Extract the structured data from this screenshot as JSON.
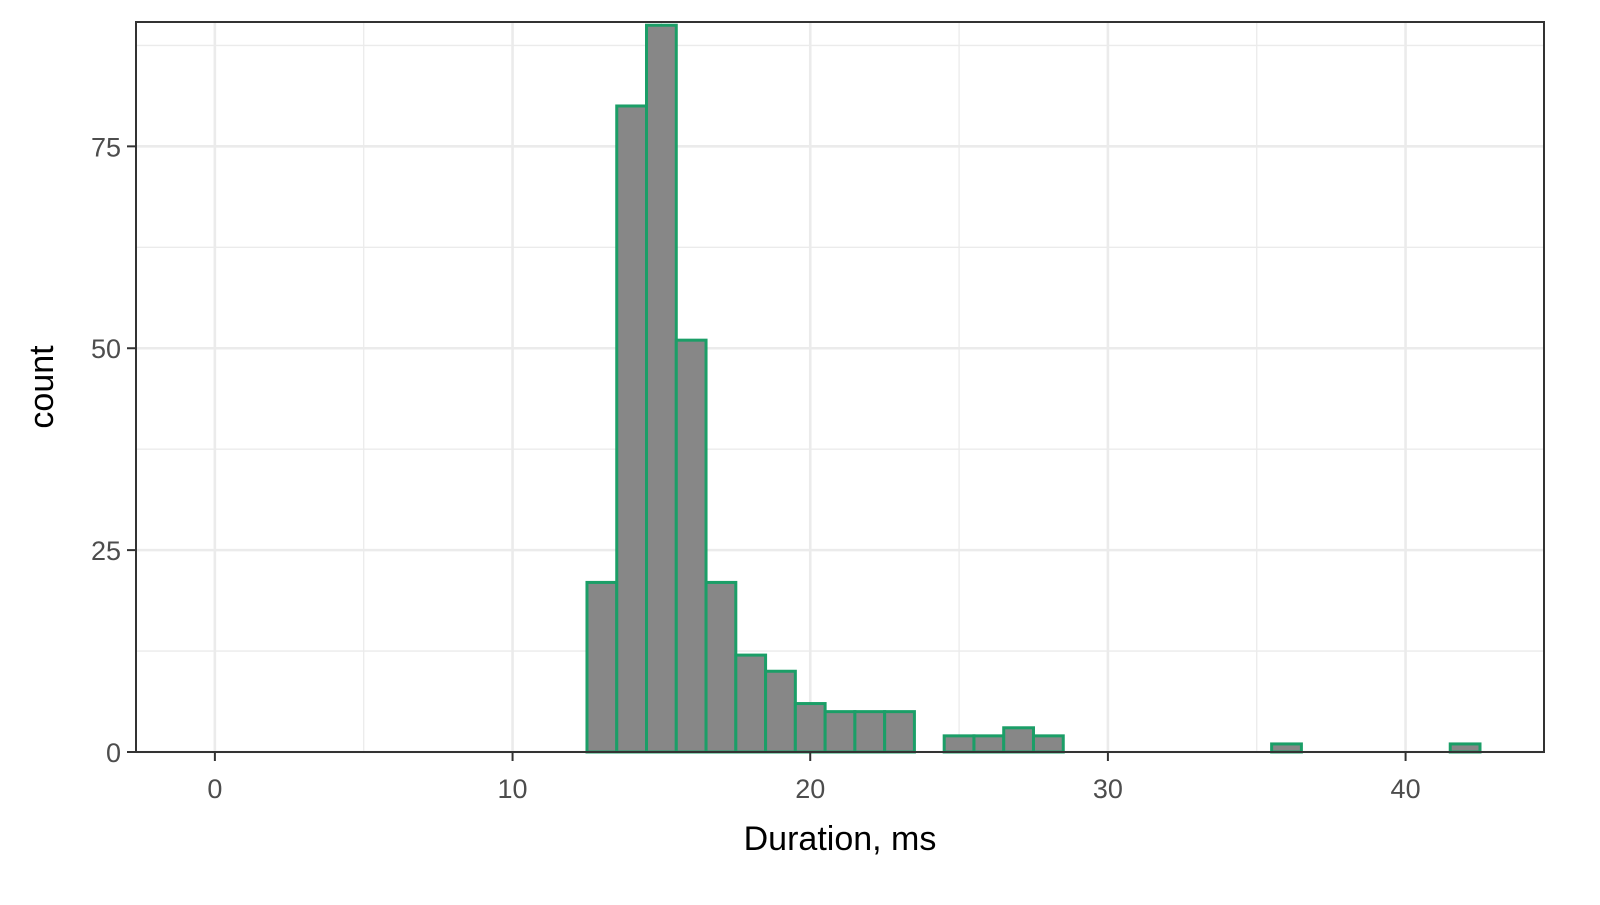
{
  "chart_data": {
    "type": "bar",
    "subtype": "histogram",
    "title": "",
    "xlabel": "Duration, ms",
    "ylabel": "count",
    "xlim": [
      -2.65,
      44.65
    ],
    "ylim": [
      0,
      90.4
    ],
    "x_ticks": [
      0,
      10,
      20,
      30,
      40
    ],
    "x_tick_labels": [
      "0",
      "10",
      "20",
      "30",
      "40"
    ],
    "y_ticks": [
      0,
      25,
      50,
      75
    ],
    "y_tick_labels": [
      "0",
      "25",
      "50",
      "75"
    ],
    "y_minor_ticks": [
      12.5,
      37.5,
      62.5,
      87.5
    ],
    "x_minor_ticks": [
      5,
      15,
      25,
      35
    ],
    "bin_width": 1,
    "bin_centers": [
      0,
      1,
      2,
      3,
      4,
      5,
      6,
      7,
      8,
      9,
      10,
      11,
      12,
      13,
      14,
      15,
      16,
      17,
      18,
      19,
      20,
      21,
      22,
      23,
      24,
      25,
      26,
      27,
      28,
      29,
      30,
      31,
      32,
      33,
      34,
      35,
      36,
      37,
      38,
      39,
      40,
      41,
      42
    ],
    "values": [
      0,
      0,
      0,
      0,
      0,
      0,
      0,
      0,
      0,
      0,
      0,
      0,
      0,
      21,
      80,
      90,
      51,
      21,
      12,
      10,
      6,
      5,
      5,
      5,
      0,
      2,
      2,
      3,
      2,
      0,
      0,
      0,
      0,
      0,
      0,
      0,
      1,
      0,
      0,
      0,
      0,
      0,
      1
    ],
    "grid": true,
    "legend": "none",
    "colors": {
      "bar_fill": "#878787",
      "bar_outline": "#1b9e67",
      "grid": "#ebebeb",
      "panel_border": "#333333",
      "tick_label": "#4d4d4d"
    }
  }
}
